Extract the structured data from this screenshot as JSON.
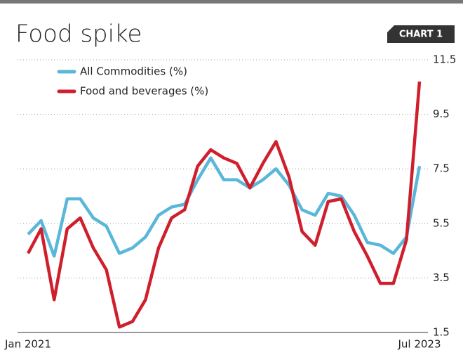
{
  "chart_data": {
    "type": "line",
    "title": "Food spike",
    "tag": "CHART 1",
    "categories": [
      "Jan 2021",
      null,
      null,
      null,
      null,
      null,
      null,
      null,
      null,
      null,
      null,
      null,
      null,
      null,
      null,
      null,
      null,
      null,
      null,
      null,
      null,
      null,
      null,
      null,
      null,
      null,
      null,
      null,
      null,
      null,
      "Jul 2023"
    ],
    "series": [
      {
        "name": "All Commodities (%)",
        "color": "#5ab7da",
        "values": [
          5.1,
          5.6,
          4.3,
          6.4,
          6.4,
          5.7,
          5.4,
          4.4,
          4.6,
          5.0,
          5.8,
          6.1,
          6.2,
          7.1,
          7.9,
          7.1,
          7.1,
          6.8,
          7.1,
          7.5,
          6.9,
          6.0,
          5.8,
          6.6,
          6.5,
          5.8,
          4.8,
          4.7,
          4.4,
          5.0,
          7.6
        ]
      },
      {
        "name": "Food and beverages (%)",
        "color": "#cf1f2d",
        "values": [
          4.4,
          5.3,
          2.7,
          5.3,
          5.7,
          4.6,
          3.8,
          1.7,
          1.9,
          2.7,
          4.6,
          5.7,
          6.0,
          7.6,
          8.2,
          7.9,
          7.7,
          6.8,
          7.7,
          8.5,
          7.2,
          5.2,
          4.7,
          6.3,
          6.4,
          5.2,
          4.3,
          3.3,
          3.3,
          4.9,
          10.7
        ]
      }
    ],
    "ylim": [
      1.5,
      11.5
    ],
    "yticks": [
      1.5,
      3.5,
      5.5,
      7.5,
      9.5,
      11.5
    ],
    "grid": true,
    "legend": "top-left"
  }
}
